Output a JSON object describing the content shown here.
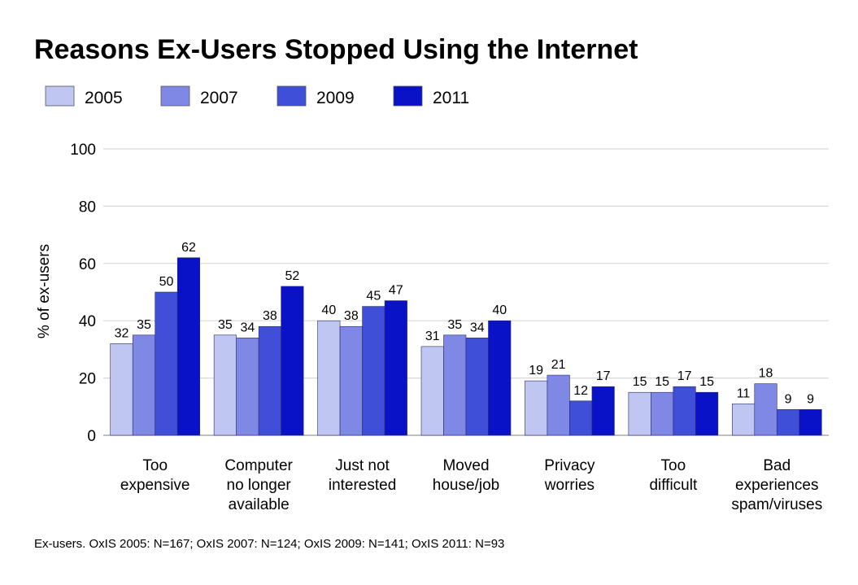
{
  "chart_data": {
    "type": "bar",
    "title": "Reasons Ex-Users Stopped Using the Internet",
    "ylabel": "% of ex-users",
    "ylim": [
      0,
      100
    ],
    "yticks": [
      "0",
      "20",
      "40",
      "60",
      "80",
      "100"
    ],
    "grid": true,
    "legend_position": "top-left",
    "categories": [
      [
        "Too",
        "expensive"
      ],
      [
        "Computer",
        "no longer",
        "available"
      ],
      [
        "Just not",
        "interested"
      ],
      [
        "Moved",
        "house/job"
      ],
      [
        "Privacy",
        "worries"
      ],
      [
        "Too",
        "difficult"
      ],
      [
        "Bad",
        "experiences",
        "spam/viruses"
      ]
    ],
    "series": [
      {
        "name": "2005",
        "color": "#c0c6f2",
        "values": [
          32,
          35,
          40,
          31,
          19,
          15,
          11
        ]
      },
      {
        "name": "2007",
        "color": "#8088e6",
        "values": [
          35,
          34,
          38,
          35,
          21,
          15,
          18
        ]
      },
      {
        "name": "2009",
        "color": "#3f4fd8",
        "values": [
          50,
          38,
          45,
          34,
          12,
          17,
          9
        ]
      },
      {
        "name": "2011",
        "color": "#0a12c8",
        "values": [
          62,
          52,
          47,
          40,
          17,
          15,
          9
        ]
      }
    ],
    "footnote": "Ex-users. OxIS 2005: N=167; OxIS 2007: N=124; OxIS 2009: N=141; OxIS 2011: N=93"
  }
}
